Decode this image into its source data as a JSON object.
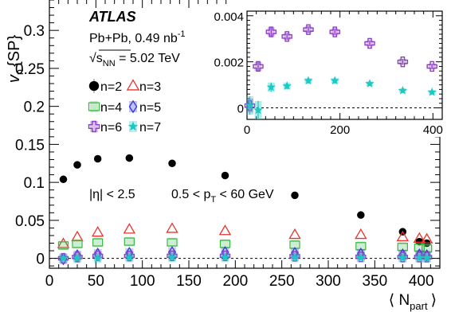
{
  "chart_data": [
    {
      "type": "scatter",
      "title": "",
      "xlabel": "⟨ N",
      "xlabel_sub": "part",
      "xlabel_close": "⟩",
      "ylabel": "v",
      "ylabel_sub": "n",
      "ylabel_suffix": "{SP}",
      "xlim": [
        0,
        420
      ],
      "ylim": [
        -0.013,
        0.34
      ],
      "x_ticks": [
        0,
        50,
        100,
        150,
        200,
        250,
        300,
        350,
        400
      ],
      "x_tick_labels": [
        "0",
        "50",
        "100",
        "150",
        "200",
        "250",
        "300",
        "350",
        "400"
      ],
      "y_ticks": [
        0,
        0.05,
        0.1,
        0.15,
        0.2,
        0.25,
        0.3
      ],
      "y_tick_labels": [
        "0",
        "0.05",
        "0.1",
        "0.15",
        "0.2",
        "0.25",
        "0.3"
      ],
      "zero_line": true,
      "annotations": {
        "experiment": "ATLAS",
        "system": "Pb+Pb, 0.49 nb",
        "system_sup": "-1",
        "energy_prefix": "√s",
        "energy_sub": "NN",
        "energy_value": " = 5.02 TeV",
        "eta_cut": "|η| < 2.5",
        "pt_cut_pre": "0.5 < p",
        "pt_cut_sub": "T",
        "pt_cut_post": " < 60 GeV"
      },
      "legend": [
        {
          "label": "n=2",
          "marker": "circle",
          "color": "#000000"
        },
        {
          "label": "n=3",
          "marker": "triangle",
          "color": "#e8332c"
        },
        {
          "label": "n=4",
          "marker": "square",
          "color": "#3cb84a"
        },
        {
          "label": "n=5",
          "marker": "diamond",
          "color": "#3437d6"
        },
        {
          "label": "n=6",
          "marker": "cross",
          "color": "#8b3fc4"
        },
        {
          "label": "n=7",
          "marker": "star",
          "color": "#1ec8c2"
        }
      ],
      "x": [
        15,
        30,
        52,
        86,
        132,
        189,
        264,
        335,
        380,
        398,
        406
      ],
      "series": [
        {
          "name": "n=2",
          "values": [
            0.104,
            0.123,
            0.131,
            0.132,
            0.125,
            0.109,
            0.083,
            0.057,
            0.035,
            0.022,
            0.02
          ]
        },
        {
          "name": "n=3",
          "values": [
            0.019,
            0.028,
            0.034,
            0.038,
            0.039,
            0.036,
            0.031,
            0.031,
            0.028,
            0.026,
            0.025
          ]
        },
        {
          "name": "n=4",
          "values": [
            0.017,
            0.019,
            0.021,
            0.022,
            0.021,
            0.019,
            0.018,
            0.016,
            0.015,
            0.014,
            0.013
          ]
        },
        {
          "name": "n=5",
          "values": [
            -0.001,
            0.004,
            0.006,
            0.007,
            0.008,
            0.008,
            0.007,
            0.006,
            0.005,
            0.005,
            0.004
          ]
        },
        {
          "name": "n=6",
          "values": [
            0.0,
            0.0018,
            0.0032,
            0.0031,
            0.0033,
            0.0033,
            0.0028,
            0.002,
            0.0018,
            0.0017,
            0.0016
          ]
        },
        {
          "name": "n=7",
          "values": [
            0.0,
            0.0,
            0.0,
            0.001,
            0.0012,
            0.0012,
            0.0011,
            0.0008,
            0.0007,
            0.0006,
            0.0005
          ]
        }
      ]
    },
    {
      "type": "scatter",
      "title": "inset",
      "xlim": [
        0,
        420
      ],
      "ylim": [
        -0.0005,
        0.0042
      ],
      "x_ticks": [
        0,
        200,
        400
      ],
      "x_tick_labels": [
        "0",
        "200",
        "400"
      ],
      "y_ticks": [
        0,
        0.002,
        0.004
      ],
      "y_tick_labels": [
        "0",
        "0.002",
        "0.004"
      ],
      "zero_line": true,
      "x": [
        6,
        24,
        52,
        86,
        132,
        189,
        264,
        335,
        398
      ],
      "series": [
        {
          "name": "n=6",
          "values": [
            0.0001,
            0.0018,
            0.0033,
            0.0031,
            0.0034,
            0.0033,
            0.0028,
            0.002,
            0.0018
          ],
          "err": [
            0.0003,
            0.0002,
            0.0002,
            0.00015,
            0.00015,
            0.00015,
            0.00013,
            0.00013,
            0.00012
          ]
        },
        {
          "name": "n=7",
          "values": [
            0.0001,
            -0.0001,
            0.0009,
            0.00095,
            0.00118,
            0.00118,
            0.00105,
            0.00075,
            0.00068
          ],
          "err": [
            0.0004,
            0.0004,
            0.0002,
            0.00015,
            0.00012,
            0.00012,
            0.0001,
            0.0001,
            0.0001
          ]
        }
      ]
    }
  ]
}
